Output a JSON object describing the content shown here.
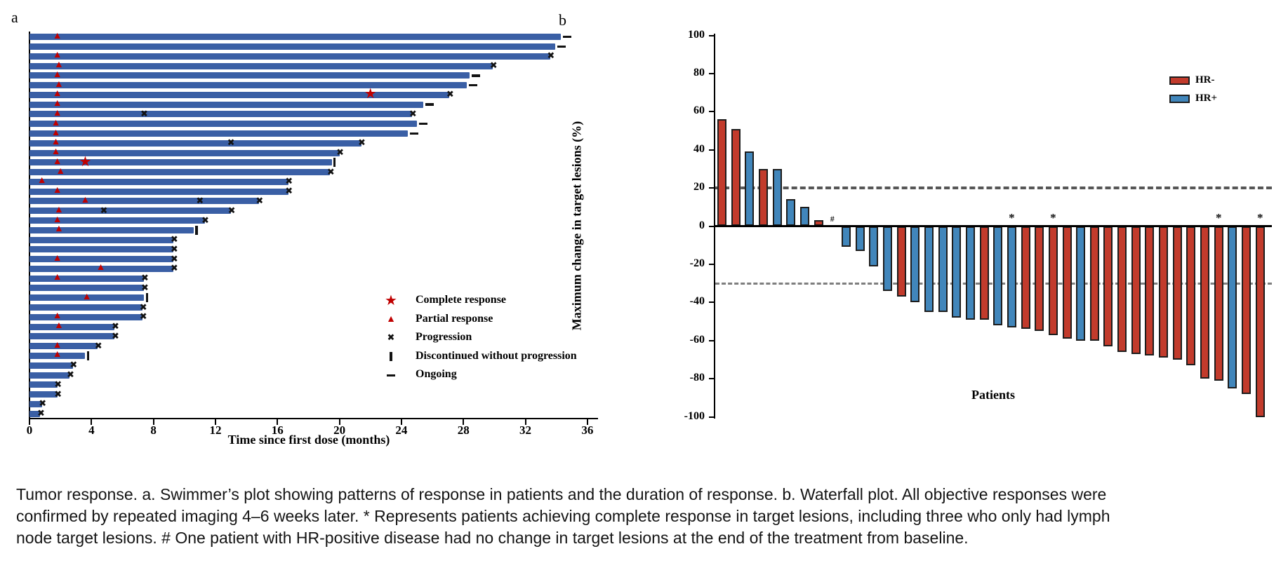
{
  "colors": {
    "swimmer_bar": "#3a5fa5",
    "response_marker": "#c00000",
    "hr_negative": "#c23b2c",
    "hr_positive": "#4186bb",
    "marker_black": "#121212",
    "axis": "#000000",
    "dash_strong": "#565656",
    "dash_light": "#7e7e7e"
  },
  "panel_a": {
    "label": "a",
    "legend": [
      {
        "marker": "star",
        "label": "Complete response"
      },
      {
        "marker": "triangle",
        "label": "Partial response"
      },
      {
        "marker": "x",
        "label": "Progression"
      },
      {
        "marker": "vbar",
        "label": "Discontinued without progression"
      },
      {
        "marker": "dash",
        "label": "Ongoing"
      }
    ]
  },
  "panel_b": {
    "label": "b"
  },
  "chart_data": [
    {
      "type": "swimmer",
      "xlabel": "Time since first dose (months)",
      "x_ticks": [
        0,
        4,
        8,
        12,
        16,
        20,
        24,
        28,
        32,
        36
      ],
      "xlim": [
        0,
        36.6
      ],
      "marker_legend": {
        "star": "Complete response",
        "triangle": "Partial response",
        "x": "Progression",
        "vbar": "Discontinued without progression",
        "dash": "Ongoing"
      },
      "patients": [
        {
          "duration": 34.3,
          "partial_response_at": 1.8,
          "end": "ongoing"
        },
        {
          "duration": 33.9,
          "end": "ongoing"
        },
        {
          "duration": 33.6,
          "partial_response_at": 1.8,
          "end": "progression"
        },
        {
          "duration": 29.9,
          "partial_response_at": 1.9,
          "end": "progression"
        },
        {
          "duration": 28.4,
          "partial_response_at": 1.8,
          "end": "ongoing"
        },
        {
          "duration": 28.2,
          "partial_response_at": 1.9,
          "end": "ongoing"
        },
        {
          "duration": 27.1,
          "partial_response_at": 1.8,
          "complete_response_at": 22.0,
          "end": "progression"
        },
        {
          "duration": 25.4,
          "partial_response_at": 1.8,
          "end": "ongoing"
        },
        {
          "duration": 24.7,
          "partial_response_at": 1.8,
          "progression_marks": [
            7.4
          ],
          "end": "progression"
        },
        {
          "duration": 25.0,
          "partial_response_at": 1.7,
          "end": "ongoing"
        },
        {
          "duration": 24.4,
          "partial_response_at": 1.7,
          "end": "ongoing"
        },
        {
          "duration": 21.4,
          "partial_response_at": 1.7,
          "progression_marks": [
            13.0
          ],
          "end": "progression"
        },
        {
          "duration": 20.0,
          "partial_response_at": 1.7,
          "end": "progression"
        },
        {
          "duration": 19.5,
          "partial_response_at": 1.8,
          "complete_response_at": 3.6,
          "end": "discontinued"
        },
        {
          "duration": 19.4,
          "partial_response_at": 2.0,
          "end": "progression"
        },
        {
          "duration": 16.7,
          "partial_response_at": 0.8,
          "end": "progression"
        },
        {
          "duration": 16.7,
          "partial_response_at": 1.8,
          "end": "progression"
        },
        {
          "duration": 14.8,
          "partial_response_at": 3.6,
          "progression_marks": [
            11.0
          ],
          "end": "progression"
        },
        {
          "duration": 13.0,
          "partial_response_at": 1.9,
          "progression_marks": [
            4.8
          ],
          "end": "progression"
        },
        {
          "duration": 11.3,
          "partial_response_at": 1.8,
          "end": "progression"
        },
        {
          "duration": 10.6,
          "partial_response_at": 1.9,
          "end": "discontinued"
        },
        {
          "duration": 9.3,
          "end": "progression"
        },
        {
          "duration": 9.3,
          "end": "progression"
        },
        {
          "duration": 9.3,
          "partial_response_at": 1.8,
          "end": "progression"
        },
        {
          "duration": 9.3,
          "partial_response_at": 4.6,
          "end": "progression"
        },
        {
          "duration": 7.4,
          "partial_response_at": 1.8,
          "end": "progression"
        },
        {
          "duration": 7.4,
          "end": "progression"
        },
        {
          "duration": 7.4,
          "partial_response_at": 3.7,
          "end": "discontinued"
        },
        {
          "duration": 7.3,
          "end": "progression"
        },
        {
          "duration": 7.3,
          "partial_response_at": 1.8,
          "end": "progression"
        },
        {
          "duration": 5.5,
          "partial_response_at": 1.9,
          "end": "progression"
        },
        {
          "duration": 5.5,
          "end": "progression"
        },
        {
          "duration": 4.4,
          "partial_response_at": 1.8,
          "end": "progression"
        },
        {
          "duration": 3.6,
          "partial_response_at": 1.8,
          "end": "discontinued"
        },
        {
          "duration": 2.8,
          "end": "progression"
        },
        {
          "duration": 2.6,
          "end": "progression"
        },
        {
          "duration": 1.8,
          "end": "progression"
        },
        {
          "duration": 1.8,
          "end": "progression"
        },
        {
          "duration": 0.8,
          "end": "progression"
        },
        {
          "duration": 0.7,
          "end": "progression"
        }
      ]
    },
    {
      "type": "waterfall-bar",
      "xlabel": "Patients",
      "ylabel": "Maximum change in target lesions (%)",
      "ylim": [
        -100,
        100
      ],
      "y_ticks": [
        100,
        80,
        60,
        40,
        20,
        0,
        -20,
        -40,
        -60,
        -80,
        -100
      ],
      "reference_lines": [
        20,
        -30
      ],
      "series_legend": [
        {
          "name": "HR-",
          "group_key": "HR-"
        },
        {
          "name": "HR+",
          "group_key": "HR+"
        }
      ],
      "patients": [
        {
          "value": 56,
          "group": "HR-"
        },
        {
          "value": 51,
          "group": "HR-"
        },
        {
          "value": 39,
          "group": "HR+"
        },
        {
          "value": 30,
          "group": "HR-"
        },
        {
          "value": 30,
          "group": "HR+"
        },
        {
          "value": 14,
          "group": "HR+"
        },
        {
          "value": 10,
          "group": "HR+"
        },
        {
          "value": 3,
          "group": "HR-"
        },
        {
          "value": 0,
          "group": "HR+",
          "annotation": "#"
        },
        {
          "value": -11,
          "group": "HR+"
        },
        {
          "value": -13,
          "group": "HR+"
        },
        {
          "value": -21,
          "group": "HR+"
        },
        {
          "value": -34,
          "group": "HR+"
        },
        {
          "value": -37,
          "group": "HR-"
        },
        {
          "value": -40,
          "group": "HR+"
        },
        {
          "value": -45,
          "group": "HR+"
        },
        {
          "value": -45,
          "group": "HR+"
        },
        {
          "value": -48,
          "group": "HR+"
        },
        {
          "value": -49,
          "group": "HR+"
        },
        {
          "value": -49,
          "group": "HR-"
        },
        {
          "value": -52,
          "group": "HR+"
        },
        {
          "value": -53,
          "group": "HR+",
          "annotation": "*"
        },
        {
          "value": -54,
          "group": "HR-"
        },
        {
          "value": -55,
          "group": "HR-"
        },
        {
          "value": -57,
          "group": "HR-",
          "annotation": "*"
        },
        {
          "value": -59,
          "group": "HR-"
        },
        {
          "value": -60,
          "group": "HR+"
        },
        {
          "value": -60,
          "group": "HR-"
        },
        {
          "value": -63,
          "group": "HR-"
        },
        {
          "value": -66,
          "group": "HR-"
        },
        {
          "value": -67,
          "group": "HR-"
        },
        {
          "value": -68,
          "group": "HR-"
        },
        {
          "value": -69,
          "group": "HR-"
        },
        {
          "value": -70,
          "group": "HR-"
        },
        {
          "value": -73,
          "group": "HR-"
        },
        {
          "value": -80,
          "group": "HR-"
        },
        {
          "value": -81,
          "group": "HR-",
          "annotation": "*"
        },
        {
          "value": -85,
          "group": "HR+"
        },
        {
          "value": -88,
          "group": "HR-"
        },
        {
          "value": -100,
          "group": "HR-",
          "annotation": "*"
        }
      ]
    }
  ],
  "caption": {
    "lines": [
      "Tumor response. a. Swimmer’s plot showing patterns of response in patients and the duration of response. b. Waterfall plot. All objective responses were",
      "confirmed by repeated imaging 4–6 weeks later. * Represents patients achieving complete response in target lesions, including three who only had lymph",
      "node target lesions. # One patient with HR-positive disease had no change in target lesions at the end of the treatment from baseline."
    ]
  }
}
